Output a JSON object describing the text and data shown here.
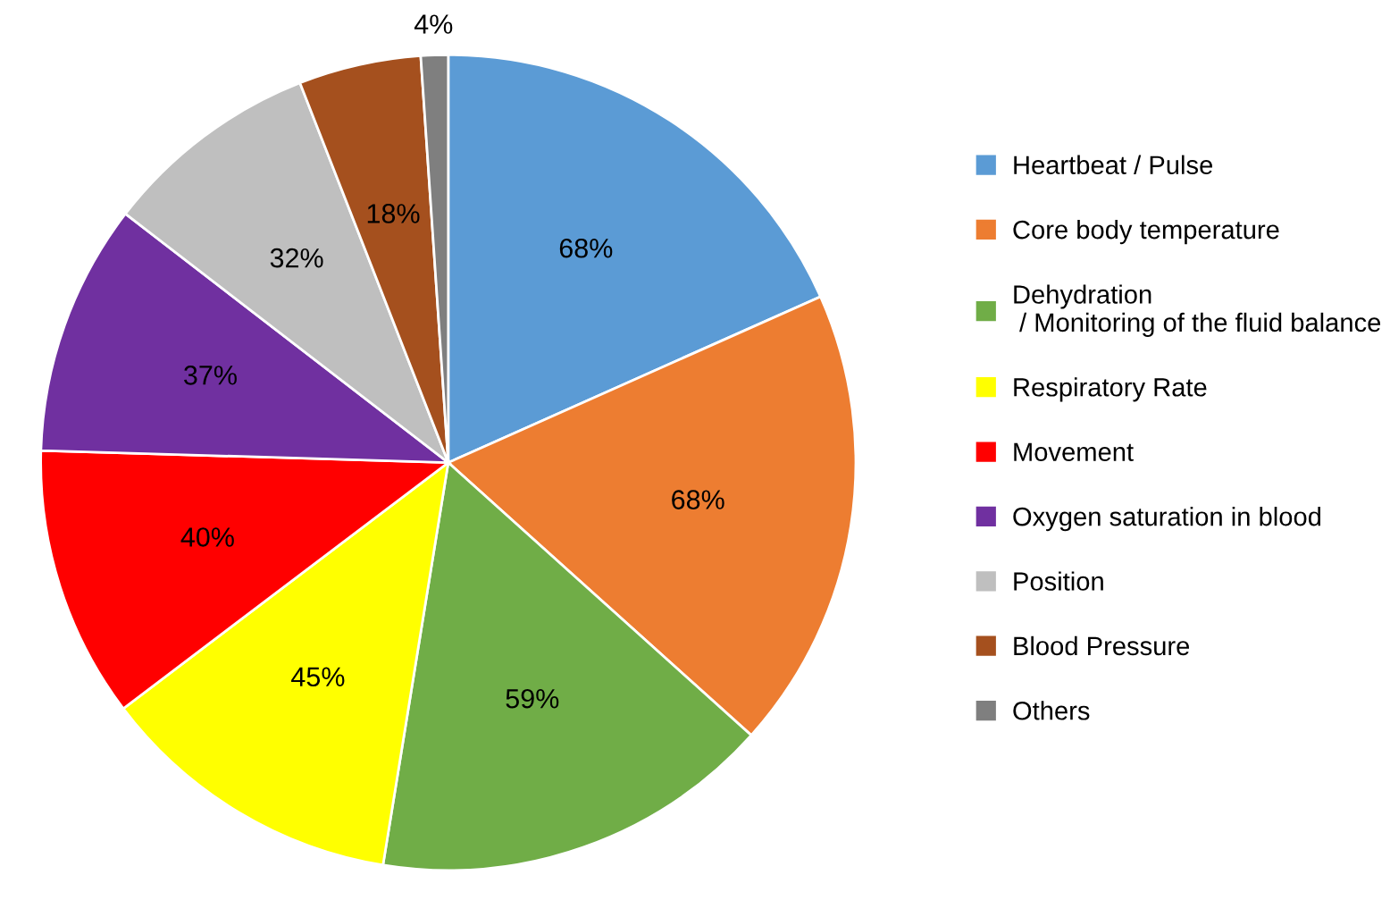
{
  "chart_data": {
    "type": "pie",
    "categories": [
      "Heartbeat / Pulse",
      "Core body temperature",
      "Dehydration\n / Monitoring of the fluid balance",
      "Respiratory Rate",
      "Movement",
      "Oxygen saturation in blood",
      "Position",
      "Blood Pressure",
      "Others"
    ],
    "values": [
      68,
      68,
      59,
      45,
      40,
      37,
      32,
      18,
      4
    ],
    "colors": [
      "#5b9bd5",
      "#ed7d31",
      "#70ad47",
      "#ffff00",
      "#ff0000",
      "#7030a0",
      "#bfbfbf",
      "#a5501e",
      "#7f7f7f"
    ],
    "value_labels": [
      "68%",
      "68%",
      "59%",
      "45%",
      "40%",
      "37%",
      "32%",
      "18%",
      "4%"
    ],
    "legend": "right"
  }
}
